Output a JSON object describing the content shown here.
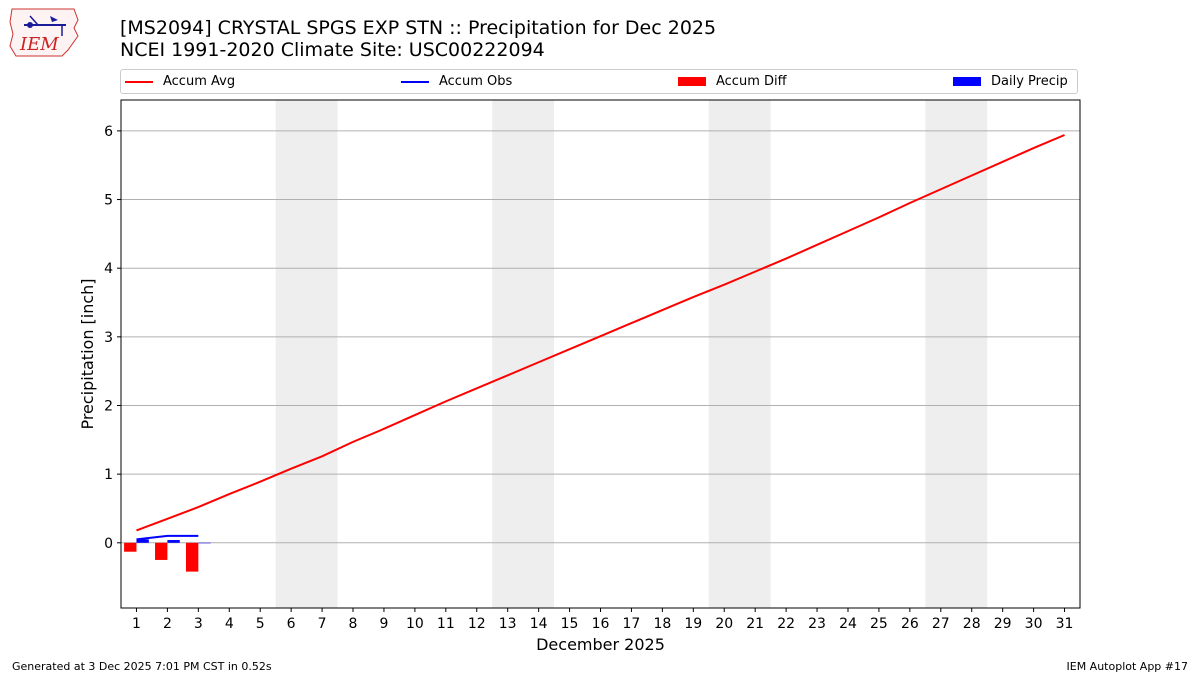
{
  "header": {
    "title_line1": "[MS2094] CRYSTAL SPGS EXP STN :: Precipitation for Dec 2025",
    "title_line2": "NCEI 1991-2020 Climate Site: USC00222094",
    "logo_text": "IEM"
  },
  "footer": {
    "generated": "Generated at 3 Dec 2025 7:01 PM CST in 0.52s",
    "app": "IEM Autoplot App #17"
  },
  "colors": {
    "accum_avg": "#ff0000",
    "accum_obs": "#0000ff",
    "accum_diff": "#ff0000",
    "daily_precip": "#0000ff",
    "weekend_shade": "#eeeeee",
    "grid": "#b0b0b0"
  },
  "chart_data": {
    "type": "line",
    "title": "[MS2094] CRYSTAL SPGS EXP STN :: Precipitation for Dec 2025",
    "subtitle": "NCEI 1991-2020 Climate Site: USC00222094",
    "xlabel": "December 2025",
    "ylabel": "Precipitation [inch]",
    "xlim": [
      0.5,
      31.5
    ],
    "ylim": [
      -0.95,
      6.45
    ],
    "yticks": [
      0,
      1,
      2,
      3,
      4,
      5,
      6
    ],
    "xticks": [
      1,
      2,
      3,
      4,
      5,
      6,
      7,
      8,
      9,
      10,
      11,
      12,
      13,
      14,
      15,
      16,
      17,
      18,
      19,
      20,
      21,
      22,
      23,
      24,
      25,
      26,
      27,
      28,
      29,
      30,
      31
    ],
    "grid": "y",
    "legend_position": "top",
    "legend": [
      "Accum Avg",
      "Accum Obs",
      "Accum Diff",
      "Daily Precip"
    ],
    "weekend_shading": [
      [
        6,
        7
      ],
      [
        13,
        14
      ],
      [
        20,
        21
      ],
      [
        27,
        28
      ]
    ],
    "series": [
      {
        "name": "Accum Avg",
        "kind": "line",
        "x": [
          1,
          2,
          3,
          4,
          5,
          6,
          7,
          8,
          9,
          10,
          11,
          12,
          13,
          14,
          15,
          16,
          17,
          18,
          19,
          20,
          21,
          22,
          23,
          24,
          25,
          26,
          27,
          28,
          29,
          30,
          31
        ],
        "values": [
          0.18,
          0.35,
          0.52,
          0.71,
          0.89,
          1.08,
          1.26,
          1.47,
          1.66,
          1.86,
          2.06,
          2.25,
          2.44,
          2.63,
          2.82,
          3.01,
          3.2,
          3.39,
          3.58,
          3.76,
          3.95,
          4.14,
          4.34,
          4.54,
          4.74,
          4.95,
          5.15,
          5.35,
          5.55,
          5.75,
          5.94
        ]
      },
      {
        "name": "Accum Obs",
        "kind": "line",
        "x": [
          1,
          2,
          3
        ],
        "values": [
          0.05,
          0.1,
          0.1
        ]
      },
      {
        "name": "Accum Diff",
        "kind": "bar",
        "x": [
          1,
          2,
          3
        ],
        "values": [
          -0.13,
          -0.25,
          -0.42
        ]
      },
      {
        "name": "Daily Precip",
        "kind": "bar",
        "x": [
          1,
          2,
          3
        ],
        "values": [
          0.05,
          0.04,
          0.0
        ]
      }
    ]
  }
}
